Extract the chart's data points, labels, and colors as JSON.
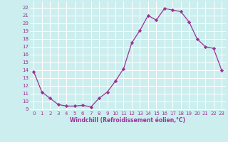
{
  "x": [
    0,
    1,
    2,
    3,
    4,
    5,
    6,
    7,
    8,
    9,
    10,
    11,
    12,
    13,
    14,
    15,
    16,
    17,
    18,
    19,
    20,
    21,
    22,
    23
  ],
  "y": [
    13.8,
    11.2,
    10.4,
    9.6,
    9.4,
    9.4,
    9.5,
    9.3,
    10.4,
    11.2,
    12.6,
    14.2,
    17.5,
    19.1,
    21.0,
    20.4,
    21.9,
    21.7,
    21.5,
    20.2,
    18.0,
    17.0,
    16.8,
    14.0
  ],
  "line_color": "#993399",
  "marker": "D",
  "marker_size": 2.2,
  "bg_color": "#cceeee",
  "grid_color": "#ffffff",
  "xlabel": "Windchill (Refroidissement éolien,°C)",
  "xlabel_color": "#993399",
  "tick_color": "#993399",
  "ylim": [
    8.8,
    22.8
  ],
  "xlim": [
    -0.5,
    23.5
  ],
  "yticks": [
    9,
    10,
    11,
    12,
    13,
    14,
    15,
    16,
    17,
    18,
    19,
    20,
    21,
    22
  ],
  "xticks": [
    0,
    1,
    2,
    3,
    4,
    5,
    6,
    7,
    8,
    9,
    10,
    11,
    12,
    13,
    14,
    15,
    16,
    17,
    18,
    19,
    20,
    21,
    22,
    23
  ]
}
